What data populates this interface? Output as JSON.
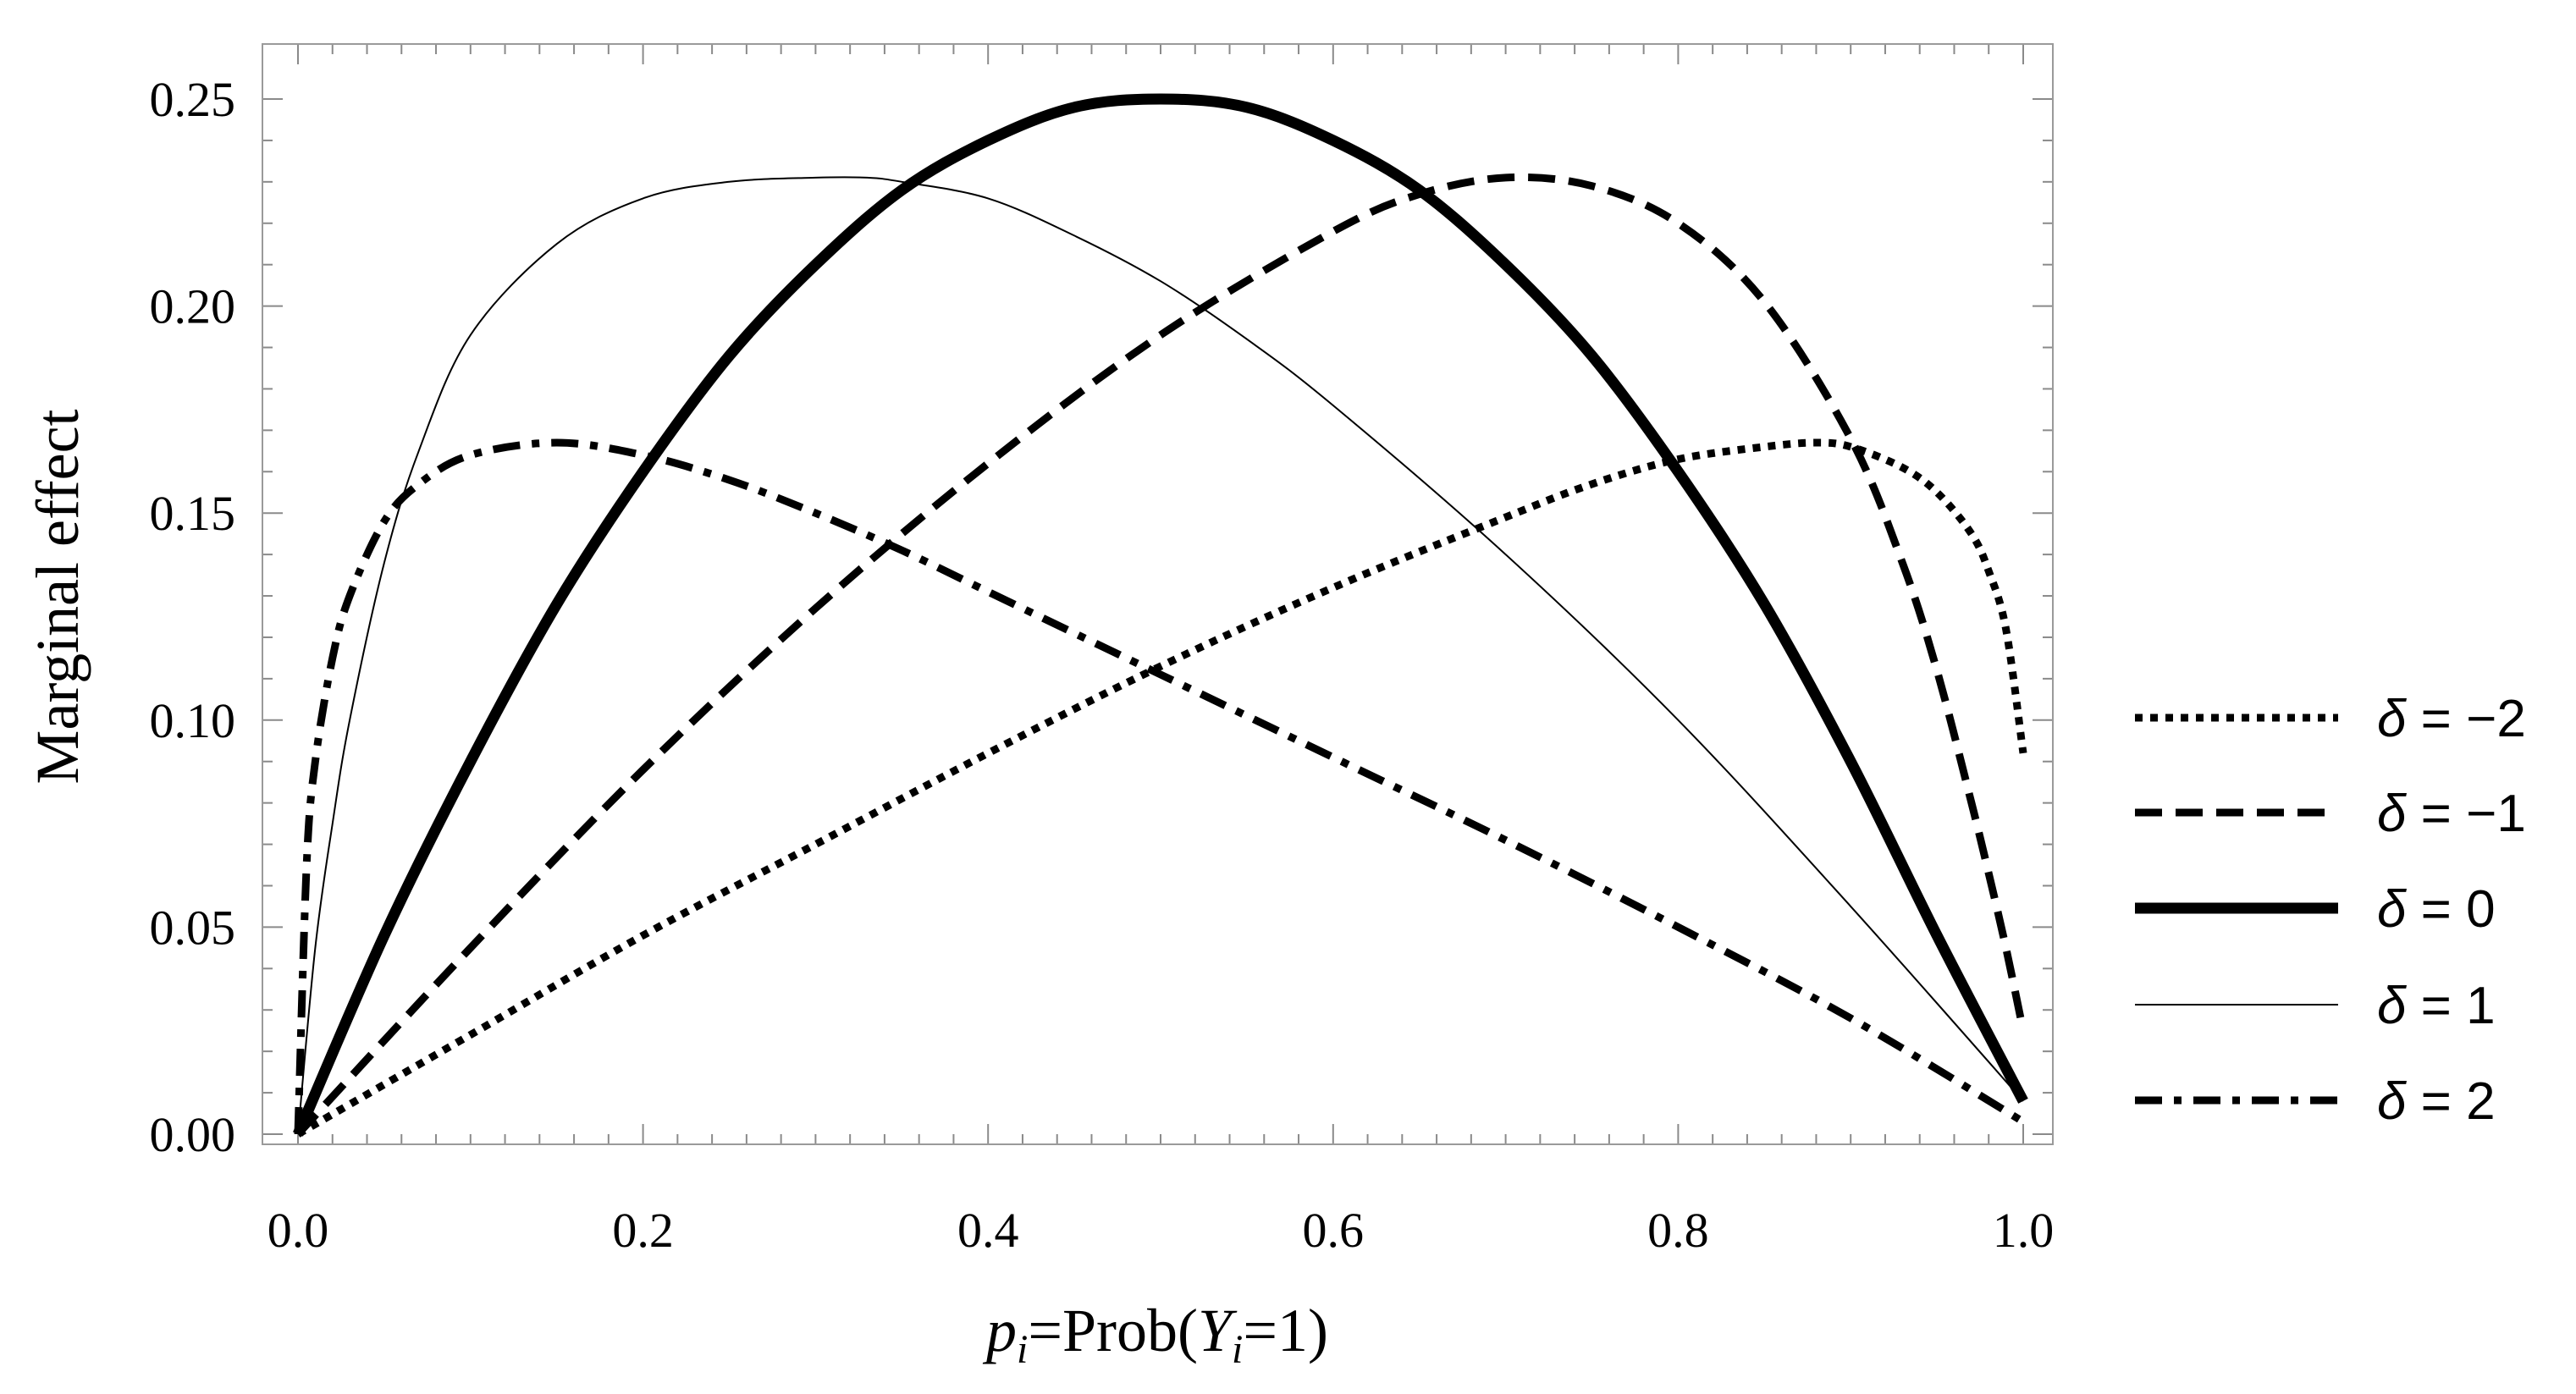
{
  "chart_data": {
    "type": "line",
    "title": "",
    "xlabel": "p_i=Prob(Y_i=1)",
    "xlabel_parts": [
      {
        "text": "p",
        "italic": true,
        "sub": false
      },
      {
        "text": "i",
        "italic": true,
        "sub": true
      },
      {
        "text": "=Prob(",
        "italic": false,
        "sub": false
      },
      {
        "text": "Y",
        "italic": true,
        "sub": false
      },
      {
        "text": "i",
        "italic": true,
        "sub": true
      },
      {
        "text": "=1)",
        "italic": false,
        "sub": false
      }
    ],
    "ylabel": "Marginal effect",
    "xlim": [
      0.0,
      1.0
    ],
    "ylim": [
      0.0,
      0.25
    ],
    "x_ticks": [
      {
        "value": 0.0,
        "label": "0.0"
      },
      {
        "value": 0.2,
        "label": "0.2"
      },
      {
        "value": 0.4,
        "label": "0.4"
      },
      {
        "value": 0.6,
        "label": "0.6"
      },
      {
        "value": 0.8,
        "label": "0.8"
      },
      {
        "value": 1.0,
        "label": "1.0"
      }
    ],
    "y_ticks": [
      {
        "value": 0.0,
        "label": "0.00"
      },
      {
        "value": 0.05,
        "label": "0.05"
      },
      {
        "value": 0.1,
        "label": "0.10"
      },
      {
        "value": 0.15,
        "label": "0.15"
      },
      {
        "value": 0.2,
        "label": "0.20"
      },
      {
        "value": 0.25,
        "label": "0.25"
      }
    ],
    "grid": false,
    "legend": "right",
    "series": [
      {
        "name": "δ = −2",
        "style": "dotted",
        "x": [
          0.0,
          0.1,
          0.2,
          0.3,
          0.4,
          0.5,
          0.6,
          0.7,
          0.75,
          0.8,
          0.85,
          0.88,
          0.9,
          0.93,
          0.95,
          0.97,
          0.98,
          0.99,
          1.0
        ],
        "y": [
          0.0,
          0.024,
          0.048,
          0.07,
          0.092,
          0.113,
          0.132,
          0.149,
          0.157,
          0.163,
          0.166,
          0.167,
          0.166,
          0.161,
          0.155,
          0.145,
          0.136,
          0.122,
          0.092
        ]
      },
      {
        "name": "δ = −1",
        "style": "dashed",
        "x": [
          0.0,
          0.1,
          0.2,
          0.3,
          0.4,
          0.5,
          0.6,
          0.65,
          0.7,
          0.75,
          0.8,
          0.85,
          0.9,
          0.93,
          0.95,
          0.97,
          0.98,
          0.99,
          1.0
        ],
        "y": [
          0.0,
          0.045,
          0.088,
          0.127,
          0.162,
          0.193,
          0.218,
          0.227,
          0.231,
          0.229,
          0.22,
          0.201,
          0.168,
          0.138,
          0.112,
          0.08,
          0.063,
          0.045,
          0.025
        ]
      },
      {
        "name": "δ = 0",
        "style": "solid-thick",
        "x": [
          0.0,
          0.05,
          0.1,
          0.15,
          0.2,
          0.25,
          0.3,
          0.35,
          0.4,
          0.45,
          0.5,
          0.55,
          0.6,
          0.65,
          0.7,
          0.75,
          0.8,
          0.85,
          0.9,
          0.95,
          1.0
        ],
        "y": [
          0.0,
          0.048,
          0.09,
          0.128,
          0.16,
          0.188,
          0.21,
          0.228,
          0.24,
          0.248,
          0.25,
          0.248,
          0.24,
          0.228,
          0.21,
          0.188,
          0.16,
          0.128,
          0.09,
          0.048,
          0.008
        ]
      },
      {
        "name": "δ = 1",
        "style": "solid-thin",
        "x": [
          0.0,
          0.01,
          0.02,
          0.03,
          0.05,
          0.07,
          0.1,
          0.15,
          0.2,
          0.25,
          0.3,
          0.33,
          0.35,
          0.4,
          0.45,
          0.5,
          0.55,
          0.6,
          0.7,
          0.8,
          0.9,
          1.0
        ],
        "y": [
          0.0,
          0.045,
          0.075,
          0.1,
          0.138,
          0.165,
          0.193,
          0.215,
          0.226,
          0.23,
          0.231,
          0.231,
          0.23,
          0.226,
          0.217,
          0.206,
          0.192,
          0.176,
          0.14,
          0.1,
          0.055,
          0.008
        ]
      },
      {
        "name": "δ = 2",
        "style": "dashdot",
        "x": [
          0.0,
          0.005,
          0.01,
          0.02,
          0.03,
          0.05,
          0.07,
          0.1,
          0.15,
          0.2,
          0.25,
          0.3,
          0.35,
          0.4,
          0.45,
          0.5,
          0.6,
          0.7,
          0.8,
          0.9,
          1.0
        ],
        "y": [
          0.0,
          0.065,
          0.09,
          0.115,
          0.13,
          0.148,
          0.157,
          0.164,
          0.167,
          0.164,
          0.158,
          0.15,
          0.141,
          0.131,
          0.121,
          0.111,
          0.091,
          0.071,
          0.05,
          0.028,
          0.003
        ]
      }
    ]
  }
}
